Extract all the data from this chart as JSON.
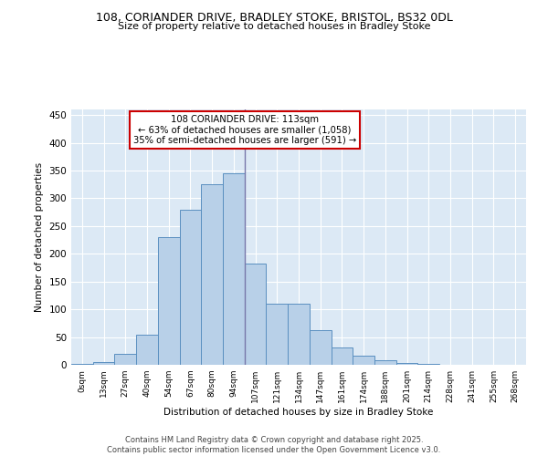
{
  "title_line1": "108, CORIANDER DRIVE, BRADLEY STOKE, BRISTOL, BS32 0DL",
  "title_line2": "Size of property relative to detached houses in Bradley Stoke",
  "xlabel": "Distribution of detached houses by size in Bradley Stoke",
  "ylabel": "Number of detached properties",
  "bin_labels": [
    "0sqm",
    "13sqm",
    "27sqm",
    "40sqm",
    "54sqm",
    "67sqm",
    "80sqm",
    "94sqm",
    "107sqm",
    "121sqm",
    "134sqm",
    "147sqm",
    "161sqm",
    "174sqm",
    "188sqm",
    "201sqm",
    "214sqm",
    "228sqm",
    "241sqm",
    "255sqm",
    "268sqm"
  ],
  "bar_values": [
    2,
    5,
    20,
    55,
    230,
    280,
    325,
    345,
    183,
    110,
    110,
    63,
    32,
    16,
    8,
    4,
    1,
    0,
    0,
    0,
    0
  ],
  "bar_color": "#b8d0e8",
  "bar_edge_color": "#5a8fc0",
  "vline_index": 8,
  "annotation_text": "108 CORIANDER DRIVE: 113sqm\n← 63% of detached houses are smaller (1,058)\n35% of semi-detached houses are larger (591) →",
  "annotation_box_color": "#ffffff",
  "annotation_box_edge_color": "#cc0000",
  "vline_color": "#7777aa",
  "ylim": [
    0,
    460
  ],
  "yticks": [
    0,
    50,
    100,
    150,
    200,
    250,
    300,
    350,
    400,
    450
  ],
  "plot_background": "#dce9f5",
  "footer_text": "Contains HM Land Registry data © Crown copyright and database right 2025.\nContains public sector information licensed under the Open Government Licence v3.0.",
  "fig_background": "#ffffff"
}
